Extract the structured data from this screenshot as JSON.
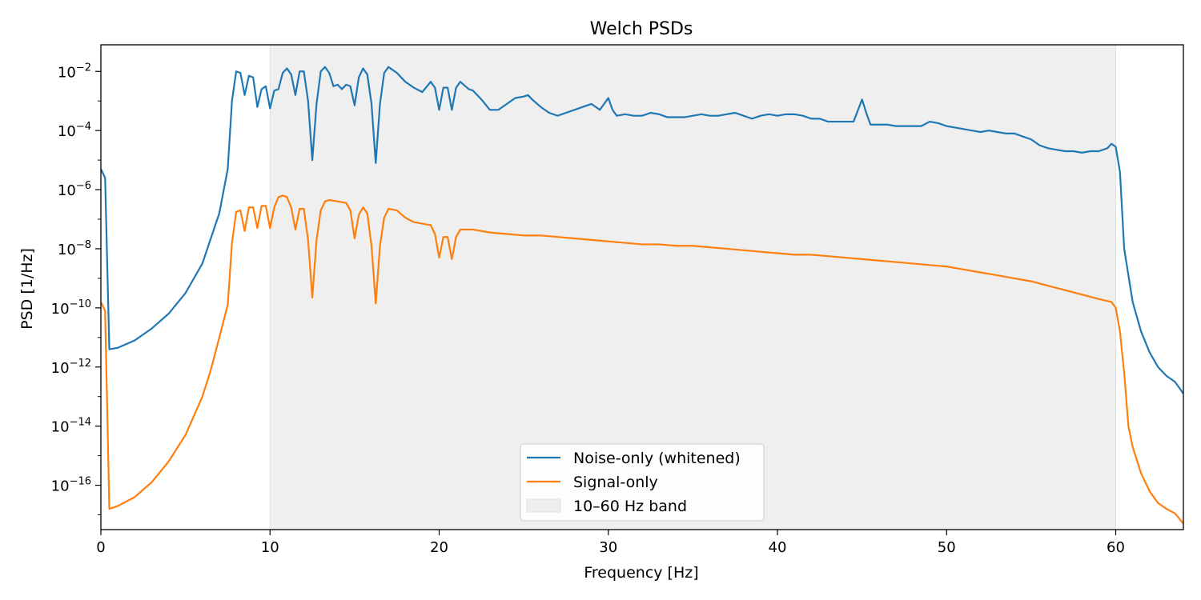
{
  "chart_data": {
    "type": "line",
    "title": "Welch PSDs",
    "xlabel": "Frequency [Hz]",
    "ylabel": "PSD [1/Hz]",
    "xlim": [
      0,
      64
    ],
    "ylim_log10": [
      -17.5,
      -1.1
    ],
    "yscale": "log",
    "grid": false,
    "legend_position": "bottom-center",
    "x_ticks": [
      0,
      10,
      20,
      30,
      40,
      50,
      60
    ],
    "x_tick_labels": [
      "0",
      "10",
      "20",
      "30",
      "40",
      "50",
      "60"
    ],
    "y_ticks_exp": [
      -16,
      -14,
      -12,
      -10,
      -8,
      -6,
      -4,
      -2
    ],
    "y_tick_labels": [
      {
        "base": "10",
        "exp": "−16"
      },
      {
        "base": "10",
        "exp": "−14"
      },
      {
        "base": "10",
        "exp": "−12"
      },
      {
        "base": "10",
        "exp": "−10"
      },
      {
        "base": "10",
        "exp": "−8"
      },
      {
        "base": "10",
        "exp": "−6"
      },
      {
        "base": "10",
        "exp": "−4"
      },
      {
        "base": "10",
        "exp": "−2"
      }
    ],
    "band": {
      "label": "10–60 Hz band",
      "x0": 10,
      "x1": 60,
      "color": "#efefef",
      "edge": "#e0e0e0"
    },
    "series": [
      {
        "name": "Noise-only (whitened)",
        "color": "#1f77b4",
        "points": [
          [
            0,
            -5.3
          ],
          [
            0.25,
            -5.6
          ],
          [
            0.5,
            -11.4
          ],
          [
            1,
            -11.35
          ],
          [
            2,
            -11.1
          ],
          [
            3,
            -10.7
          ],
          [
            4,
            -10.2
          ],
          [
            5,
            -9.5
          ],
          [
            6,
            -8.5
          ],
          [
            7,
            -6.8
          ],
          [
            7.5,
            -5.3
          ],
          [
            7.75,
            -3.0
          ],
          [
            8,
            -2.0
          ],
          [
            8.25,
            -2.05
          ],
          [
            8.5,
            -2.8
          ],
          [
            8.75,
            -2.15
          ],
          [
            9,
            -2.2
          ],
          [
            9.25,
            -3.2
          ],
          [
            9.5,
            -2.6
          ],
          [
            9.75,
            -2.5
          ],
          [
            10,
            -3.25
          ],
          [
            10.25,
            -2.65
          ],
          [
            10.5,
            -2.6
          ],
          [
            10.75,
            -2.05
          ],
          [
            11,
            -1.9
          ],
          [
            11.25,
            -2.1
          ],
          [
            11.5,
            -2.8
          ],
          [
            11.75,
            -2.0
          ],
          [
            12,
            -2.0
          ],
          [
            12.25,
            -3.0
          ],
          [
            12.5,
            -5.0
          ],
          [
            12.75,
            -3.1
          ],
          [
            13,
            -2.0
          ],
          [
            13.25,
            -1.85
          ],
          [
            13.5,
            -2.05
          ],
          [
            13.75,
            -2.5
          ],
          [
            14,
            -2.45
          ],
          [
            14.25,
            -2.6
          ],
          [
            14.5,
            -2.45
          ],
          [
            14.75,
            -2.5
          ],
          [
            15,
            -3.15
          ],
          [
            15.25,
            -2.2
          ],
          [
            15.5,
            -1.9
          ],
          [
            15.75,
            -2.1
          ],
          [
            16,
            -3.1
          ],
          [
            16.25,
            -5.1
          ],
          [
            16.5,
            -3.1
          ],
          [
            16.75,
            -2.05
          ],
          [
            17,
            -1.85
          ],
          [
            17.5,
            -2.05
          ],
          [
            18,
            -2.35
          ],
          [
            18.5,
            -2.55
          ],
          [
            19,
            -2.7
          ],
          [
            19.5,
            -2.35
          ],
          [
            19.75,
            -2.55
          ],
          [
            20,
            -3.3
          ],
          [
            20.25,
            -2.55
          ],
          [
            20.5,
            -2.55
          ],
          [
            20.75,
            -3.3
          ],
          [
            21,
            -2.55
          ],
          [
            21.25,
            -2.35
          ],
          [
            21.75,
            -2.6
          ],
          [
            22,
            -2.65
          ],
          [
            22.5,
            -2.95
          ],
          [
            23,
            -3.3
          ],
          [
            23.5,
            -3.3
          ],
          [
            24,
            -3.1
          ],
          [
            24.5,
            -2.9
          ],
          [
            25,
            -2.85
          ],
          [
            25.25,
            -2.8
          ],
          [
            25.5,
            -2.95
          ],
          [
            26,
            -3.2
          ],
          [
            26.5,
            -3.4
          ],
          [
            27,
            -3.5
          ],
          [
            27.5,
            -3.4
          ],
          [
            28,
            -3.3
          ],
          [
            28.5,
            -3.2
          ],
          [
            29,
            -3.1
          ],
          [
            29.5,
            -3.3
          ],
          [
            30,
            -2.9
          ],
          [
            30.25,
            -3.3
          ],
          [
            30.5,
            -3.5
          ],
          [
            31,
            -3.45
          ],
          [
            31.5,
            -3.5
          ],
          [
            32,
            -3.5
          ],
          [
            32.5,
            -3.4
          ],
          [
            33,
            -3.45
          ],
          [
            33.5,
            -3.55
          ],
          [
            34,
            -3.55
          ],
          [
            34.5,
            -3.55
          ],
          [
            35,
            -3.5
          ],
          [
            35.5,
            -3.45
          ],
          [
            36,
            -3.5
          ],
          [
            36.5,
            -3.5
          ],
          [
            37,
            -3.45
          ],
          [
            37.5,
            -3.4
          ],
          [
            38,
            -3.5
          ],
          [
            38.5,
            -3.6
          ],
          [
            39,
            -3.5
          ],
          [
            39.5,
            -3.45
          ],
          [
            40,
            -3.5
          ],
          [
            40.5,
            -3.45
          ],
          [
            41,
            -3.45
          ],
          [
            41.5,
            -3.5
          ],
          [
            42,
            -3.6
          ],
          [
            42.5,
            -3.6
          ],
          [
            43,
            -3.7
          ],
          [
            43.5,
            -3.7
          ],
          [
            44,
            -3.7
          ],
          [
            44.5,
            -3.7
          ],
          [
            45,
            -2.95
          ],
          [
            45.25,
            -3.4
          ],
          [
            45.5,
            -3.8
          ],
          [
            46,
            -3.8
          ],
          [
            46.5,
            -3.8
          ],
          [
            47,
            -3.85
          ],
          [
            47.5,
            -3.85
          ],
          [
            48,
            -3.85
          ],
          [
            48.5,
            -3.85
          ],
          [
            49,
            -3.7
          ],
          [
            49.5,
            -3.75
          ],
          [
            50,
            -3.85
          ],
          [
            50.5,
            -3.9
          ],
          [
            51,
            -3.95
          ],
          [
            51.5,
            -4.0
          ],
          [
            52,
            -4.05
          ],
          [
            52.5,
            -4.0
          ],
          [
            53,
            -4.05
          ],
          [
            53.5,
            -4.1
          ],
          [
            54,
            -4.1
          ],
          [
            54.5,
            -4.2
          ],
          [
            55,
            -4.3
          ],
          [
            55.5,
            -4.5
          ],
          [
            56,
            -4.6
          ],
          [
            56.5,
            -4.65
          ],
          [
            57,
            -4.7
          ],
          [
            57.5,
            -4.7
          ],
          [
            58,
            -4.75
          ],
          [
            58.5,
            -4.7
          ],
          [
            59,
            -4.7
          ],
          [
            59.5,
            -4.6
          ],
          [
            59.75,
            -4.45
          ],
          [
            60,
            -4.55
          ],
          [
            60.25,
            -5.4
          ],
          [
            60.5,
            -8.0
          ],
          [
            61,
            -9.8
          ],
          [
            61.5,
            -10.8
          ],
          [
            62,
            -11.5
          ],
          [
            62.5,
            -12.0
          ],
          [
            63,
            -12.3
          ],
          [
            63.5,
            -12.5
          ],
          [
            64,
            -12.9
          ]
        ]
      },
      {
        "name": "Signal-only",
        "color": "#ff7f0e",
        "points": [
          [
            0,
            -9.8
          ],
          [
            0.25,
            -10.1
          ],
          [
            0.5,
            -16.8
          ],
          [
            1,
            -16.7
          ],
          [
            2,
            -16.4
          ],
          [
            3,
            -15.9
          ],
          [
            4,
            -15.2
          ],
          [
            5,
            -14.3
          ],
          [
            6,
            -13.0
          ],
          [
            6.5,
            -12.1
          ],
          [
            7,
            -11.0
          ],
          [
            7.5,
            -9.9
          ],
          [
            7.75,
            -7.8
          ],
          [
            8,
            -6.75
          ],
          [
            8.25,
            -6.7
          ],
          [
            8.5,
            -7.4
          ],
          [
            8.75,
            -6.6
          ],
          [
            9,
            -6.6
          ],
          [
            9.25,
            -7.3
          ],
          [
            9.5,
            -6.55
          ],
          [
            9.75,
            -6.55
          ],
          [
            10,
            -7.3
          ],
          [
            10.25,
            -6.6
          ],
          [
            10.5,
            -6.25
          ],
          [
            10.75,
            -6.2
          ],
          [
            11,
            -6.25
          ],
          [
            11.25,
            -6.6
          ],
          [
            11.5,
            -7.35
          ],
          [
            11.75,
            -6.65
          ],
          [
            12,
            -6.65
          ],
          [
            12.25,
            -7.7
          ],
          [
            12.5,
            -9.65
          ],
          [
            12.75,
            -7.7
          ],
          [
            13,
            -6.7
          ],
          [
            13.25,
            -6.4
          ],
          [
            13.5,
            -6.35
          ],
          [
            14,
            -6.4
          ],
          [
            14.5,
            -6.45
          ],
          [
            14.75,
            -6.7
          ],
          [
            15,
            -7.65
          ],
          [
            15.25,
            -6.85
          ],
          [
            15.5,
            -6.6
          ],
          [
            15.75,
            -6.8
          ],
          [
            16,
            -7.9
          ],
          [
            16.25,
            -9.85
          ],
          [
            16.5,
            -7.9
          ],
          [
            16.75,
            -6.95
          ],
          [
            17,
            -6.65
          ],
          [
            17.5,
            -6.7
          ],
          [
            18,
            -6.95
          ],
          [
            18.5,
            -7.1
          ],
          [
            19,
            -7.15
          ],
          [
            19.5,
            -7.2
          ],
          [
            19.75,
            -7.5
          ],
          [
            20,
            -8.3
          ],
          [
            20.25,
            -7.6
          ],
          [
            20.5,
            -7.6
          ],
          [
            20.75,
            -8.35
          ],
          [
            21,
            -7.6
          ],
          [
            21.25,
            -7.35
          ],
          [
            22,
            -7.35
          ],
          [
            23,
            -7.45
          ],
          [
            24,
            -7.5
          ],
          [
            25,
            -7.55
          ],
          [
            26,
            -7.55
          ],
          [
            27,
            -7.6
          ],
          [
            28,
            -7.65
          ],
          [
            29,
            -7.7
          ],
          [
            30,
            -7.75
          ],
          [
            31,
            -7.8
          ],
          [
            32,
            -7.85
          ],
          [
            33,
            -7.85
          ],
          [
            34,
            -7.9
          ],
          [
            35,
            -7.9
          ],
          [
            36,
            -7.95
          ],
          [
            37,
            -8.0
          ],
          [
            38,
            -8.05
          ],
          [
            39,
            -8.1
          ],
          [
            40,
            -8.15
          ],
          [
            41,
            -8.2
          ],
          [
            42,
            -8.2
          ],
          [
            43,
            -8.25
          ],
          [
            44,
            -8.3
          ],
          [
            45,
            -8.35
          ],
          [
            46,
            -8.4
          ],
          [
            47,
            -8.45
          ],
          [
            48,
            -8.5
          ],
          [
            49,
            -8.55
          ],
          [
            50,
            -8.6
          ],
          [
            51,
            -8.7
          ],
          [
            52,
            -8.8
          ],
          [
            53,
            -8.9
          ],
          [
            54,
            -9.0
          ],
          [
            55,
            -9.1
          ],
          [
            56,
            -9.25
          ],
          [
            57,
            -9.4
          ],
          [
            58,
            -9.55
          ],
          [
            59,
            -9.7
          ],
          [
            59.75,
            -9.8
          ],
          [
            60,
            -10.0
          ],
          [
            60.25,
            -10.8
          ],
          [
            60.5,
            -12.2
          ],
          [
            60.75,
            -14.0
          ],
          [
            61,
            -14.7
          ],
          [
            61.5,
            -15.6
          ],
          [
            62,
            -16.2
          ],
          [
            62.5,
            -16.6
          ],
          [
            63,
            -16.8
          ],
          [
            63.5,
            -16.95
          ],
          [
            64,
            -17.3
          ]
        ]
      }
    ]
  }
}
